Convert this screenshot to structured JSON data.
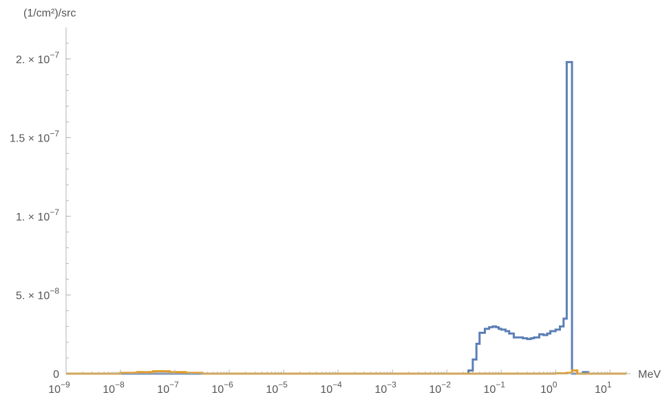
{
  "chart_data": {
    "type": "line",
    "x_scale": "log",
    "y_scale": "linear",
    "xlim": [
      1e-09,
      20
    ],
    "ylim": [
      0,
      2.2e-07
    ],
    "xlabel": "MeV",
    "ylabel": "(1/cm²)/src",
    "grid": false,
    "x_ticks": [
      {
        "value": 1e-09,
        "base": "10",
        "exp": "−9"
      },
      {
        "value": 1e-08,
        "base": "10",
        "exp": "−8"
      },
      {
        "value": 1e-07,
        "base": "10",
        "exp": "−7"
      },
      {
        "value": 1e-06,
        "base": "10",
        "exp": "−6"
      },
      {
        "value": 1e-05,
        "base": "10",
        "exp": "−5"
      },
      {
        "value": 0.0001,
        "base": "10",
        "exp": "−4"
      },
      {
        "value": 0.001,
        "base": "10",
        "exp": "−3"
      },
      {
        "value": 0.01,
        "base": "10",
        "exp": "−2"
      },
      {
        "value": 0.1,
        "base": "10",
        "exp": "−1"
      },
      {
        "value": 1,
        "base": "10",
        "exp": "0"
      },
      {
        "value": 10,
        "base": "10",
        "exp": "1"
      }
    ],
    "y_ticks": [
      {
        "value": 0,
        "mant": "0",
        "exp": ""
      },
      {
        "value": 5e-08,
        "mant": "5. × 10",
        "exp": "−8"
      },
      {
        "value": 1e-07,
        "mant": "1. × 10",
        "exp": "−7"
      },
      {
        "value": 1.5e-07,
        "mant": "1.5 × 10",
        "exp": "−7"
      },
      {
        "value": 2e-07,
        "mant": "2. × 10",
        "exp": "−7"
      }
    ],
    "series": [
      {
        "color": "#5b7fb5",
        "edges": [
          1e-09,
          0.025,
          0.03,
          0.035,
          0.04,
          0.05,
          0.06,
          0.07,
          0.08,
          0.09,
          0.1,
          0.12,
          0.14,
          0.17,
          0.2,
          0.25,
          0.3,
          0.35,
          0.4,
          0.5,
          0.6,
          0.7,
          0.8,
          1.0,
          1.2,
          1.4,
          1.6,
          2.0,
          2.5,
          3.2,
          4.0,
          5.0,
          6.3,
          8.0,
          20
        ],
        "values": [
          0,
          2e-09,
          9e-09,
          1.9e-08,
          2.6e-08,
          2.85e-08,
          2.95e-08,
          3e-08,
          2.95e-08,
          2.85e-08,
          2.8e-08,
          2.7e-08,
          2.55e-08,
          2.3e-08,
          2.3e-08,
          2.25e-08,
          2.2e-08,
          2.25e-08,
          2.3e-08,
          2.5e-08,
          2.45e-08,
          2.55e-08,
          2.7e-08,
          2.8e-08,
          3e-08,
          3.5e-08,
          1.98e-07,
          0,
          0,
          1e-09,
          0,
          0,
          0,
          0
        ]
      },
      {
        "color": "#e19c24",
        "edges": [
          1e-09,
          1e-08,
          2e-08,
          4e-08,
          8e-08,
          1.6e-07,
          3.2e-07,
          1e-06,
          0.001,
          0.1,
          1.0,
          1.6,
          2.0,
          2.5,
          20
        ],
        "values": [
          0,
          5e-10,
          1e-09,
          1.5e-09,
          1e-09,
          5e-10,
          0,
          0,
          0,
          0,
          2e-10,
          5e-10,
          2e-09,
          0
        ]
      }
    ]
  }
}
